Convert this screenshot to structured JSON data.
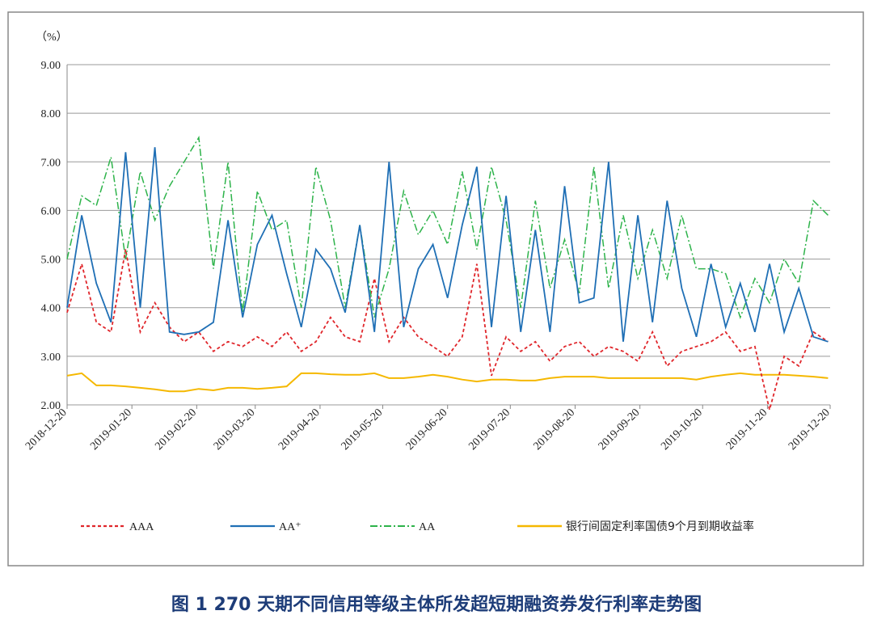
{
  "chart_data": {
    "type": "line",
    "y_unit": "（%）",
    "caption": "图 1  270 天期不同信用等级主体所发超短期融资券发行利率走势图",
    "x": [
      "2018-12-20",
      "2018-12-27",
      "2019-01-03",
      "2019-01-10",
      "2019-01-17",
      "2019-01-24",
      "2019-01-31",
      "2019-02-07",
      "2019-02-14",
      "2019-02-21",
      "2019-02-28",
      "2019-03-07",
      "2019-03-14",
      "2019-03-21",
      "2019-03-28",
      "2019-04-04",
      "2019-04-11",
      "2019-04-18",
      "2019-04-25",
      "2019-05-02",
      "2019-05-09",
      "2019-05-16",
      "2019-05-23",
      "2019-05-30",
      "2019-06-06",
      "2019-06-13",
      "2019-06-20",
      "2019-06-27",
      "2019-07-04",
      "2019-07-11",
      "2019-07-18",
      "2019-07-25",
      "2019-08-01",
      "2019-08-08",
      "2019-08-15",
      "2019-08-22",
      "2019-08-29",
      "2019-09-05",
      "2019-09-12",
      "2019-09-19",
      "2019-09-26",
      "2019-10-03",
      "2019-10-10",
      "2019-10-17",
      "2019-10-24",
      "2019-10-31",
      "2019-11-07",
      "2019-11-14",
      "2019-11-21",
      "2019-11-28",
      "2019-12-05",
      "2019-12-12",
      "2019-12-19"
    ],
    "series": [
      {
        "name": "AAA",
        "color": "#e0262b",
        "values": [
          3.9,
          4.9,
          3.7,
          3.5,
          5.2,
          3.5,
          4.1,
          3.6,
          3.3,
          3.5,
          3.1,
          3.3,
          3.2,
          3.4,
          3.2,
          3.5,
          3.1,
          3.3,
          3.8,
          3.4,
          3.3,
          4.6,
          3.3,
          3.8,
          3.4,
          3.2,
          3.0,
          3.4,
          4.9,
          2.6,
          3.4,
          3.1,
          3.3,
          2.9,
          3.2,
          3.3,
          3.0,
          3.2,
          3.1,
          2.9,
          3.5,
          2.8,
          3.1,
          3.2,
          3.3,
          3.5,
          3.1,
          3.2,
          1.9,
          3.0,
          2.8,
          3.5,
          3.3
        ]
      },
      {
        "name": "AA⁺",
        "color": "#1f6fb5",
        "values": [
          4.0,
          5.9,
          4.5,
          3.7,
          7.2,
          4.0,
          7.3,
          3.5,
          3.45,
          3.5,
          3.7,
          5.8,
          3.8,
          5.3,
          5.9,
          4.7,
          3.6,
          5.2,
          4.8,
          3.9,
          5.7,
          3.5,
          7.0,
          3.6,
          4.8,
          5.3,
          4.2,
          5.7,
          6.9,
          3.6,
          6.3,
          3.5,
          5.6,
          3.5,
          6.5,
          4.1,
          4.2,
          7.0,
          3.3,
          5.9,
          3.7,
          6.2,
          4.4,
          3.4,
          4.9,
          3.6,
          4.5,
          3.5,
          4.9,
          3.5,
          4.4,
          3.4,
          3.3
        ]
      },
      {
        "name": "AA",
        "color": "#2db34a",
        "values": [
          5.0,
          6.3,
          6.1,
          7.1,
          5.0,
          6.8,
          5.8,
          6.5,
          7.0,
          7.5,
          4.8,
          7.0,
          3.9,
          6.4,
          5.6,
          5.8,
          4.0,
          6.9,
          5.8,
          4.0,
          5.7,
          3.8,
          4.8,
          6.4,
          5.5,
          6.0,
          5.3,
          6.8,
          5.2,
          6.9,
          5.8,
          4.0,
          6.2,
          4.4,
          5.4,
          4.3,
          6.9,
          4.4,
          5.9,
          4.6,
          5.6,
          4.6,
          5.9,
          4.8,
          4.8,
          4.7,
          3.8,
          4.6,
          4.1,
          5.0,
          4.5,
          6.2,
          5.9
        ]
      },
      {
        "name": "银行间固定利率国债9个月到期收益率",
        "color": "#f5b800",
        "values": [
          2.6,
          2.65,
          2.4,
          2.4,
          2.38,
          2.35,
          2.32,
          2.28,
          2.28,
          2.33,
          2.3,
          2.35,
          2.35,
          2.33,
          2.35,
          2.38,
          2.65,
          2.65,
          2.63,
          2.62,
          2.62,
          2.65,
          2.55,
          2.55,
          2.58,
          2.62,
          2.58,
          2.52,
          2.48,
          2.52,
          2.52,
          2.5,
          2.5,
          2.55,
          2.58,
          2.58,
          2.58,
          2.55,
          2.55,
          2.55,
          2.55,
          2.55,
          2.55,
          2.52,
          2.58,
          2.62,
          2.65,
          2.62,
          2.62,
          2.62,
          2.6,
          2.58,
          2.55
        ]
      }
    ],
    "xlim": [
      "2018-12-20",
      "2019-12-20"
    ],
    "xticks": [
      "2018-12-20",
      "2019-01-20",
      "2019-02-20",
      "2019-03-20",
      "2019-04-20",
      "2019-05-20",
      "2019-06-20",
      "2019-07-20",
      "2019-08-20",
      "2019-09-20",
      "2019-10-20",
      "2019-11-20",
      "2019-12-20"
    ],
    "ylim": [
      2,
      9
    ],
    "yticks": [
      {
        "value": 2,
        "label": "2.00"
      },
      {
        "value": 3,
        "label": "3.00"
      },
      {
        "value": 4,
        "label": "4.00"
      },
      {
        "value": 5,
        "label": "5.00"
      },
      {
        "value": 6,
        "label": "6.00"
      },
      {
        "value": 7,
        "label": "7.00"
      },
      {
        "value": 8,
        "label": "8.00"
      },
      {
        "value": 9,
        "label": "9.00"
      }
    ],
    "grid": true,
    "legend": "bottom"
  }
}
